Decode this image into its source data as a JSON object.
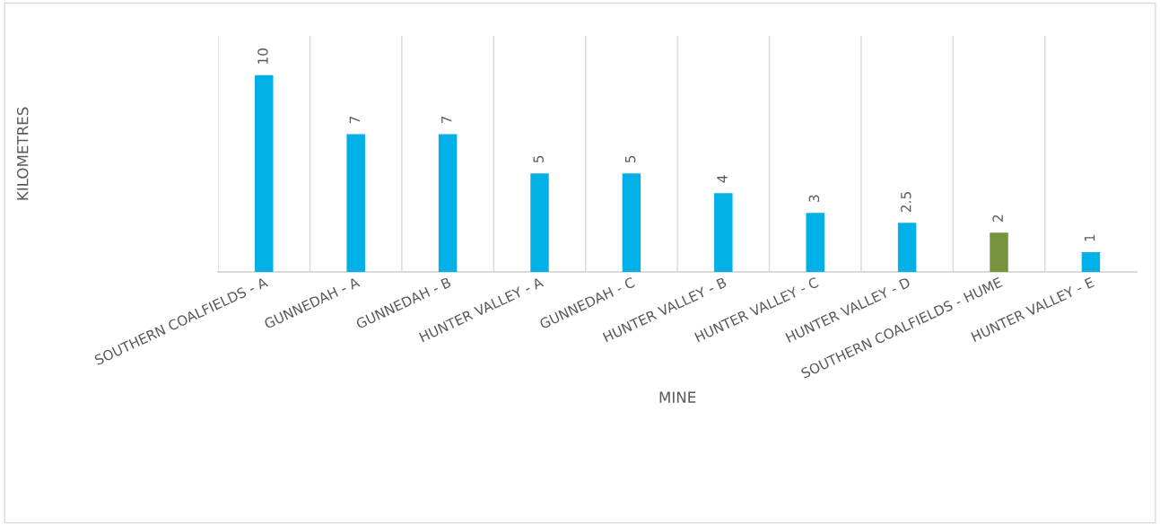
{
  "chart_data": {
    "type": "bar",
    "xlabel": "MINE",
    "ylabel": "KILOMETRES",
    "categories": [
      "SOUTHERN COALFIELDS - A",
      "GUNNEDAH - A",
      "GUNNEDAH - B",
      "HUNTER VALLEY - A",
      "GUNNEDAH - C",
      "HUNTER VALLEY - B",
      "HUNTER VALLEY - C",
      "HUNTER VALLEY - D",
      "SOUTHERN COALFIELDS - HUME",
      "HUNTER VALLEY - E"
    ],
    "values": [
      10,
      7,
      7,
      5,
      5,
      4,
      3,
      2.5,
      2,
      1
    ],
    "colors": [
      "#00b0e6",
      "#00b0e6",
      "#00b0e6",
      "#00b0e6",
      "#00b0e6",
      "#00b0e6",
      "#00b0e6",
      "#00b0e6",
      "#77933c",
      "#00b0e6"
    ],
    "ylim": [
      0,
      12
    ],
    "data_labels": true,
    "grid": "x",
    "tick_labels": "x"
  }
}
